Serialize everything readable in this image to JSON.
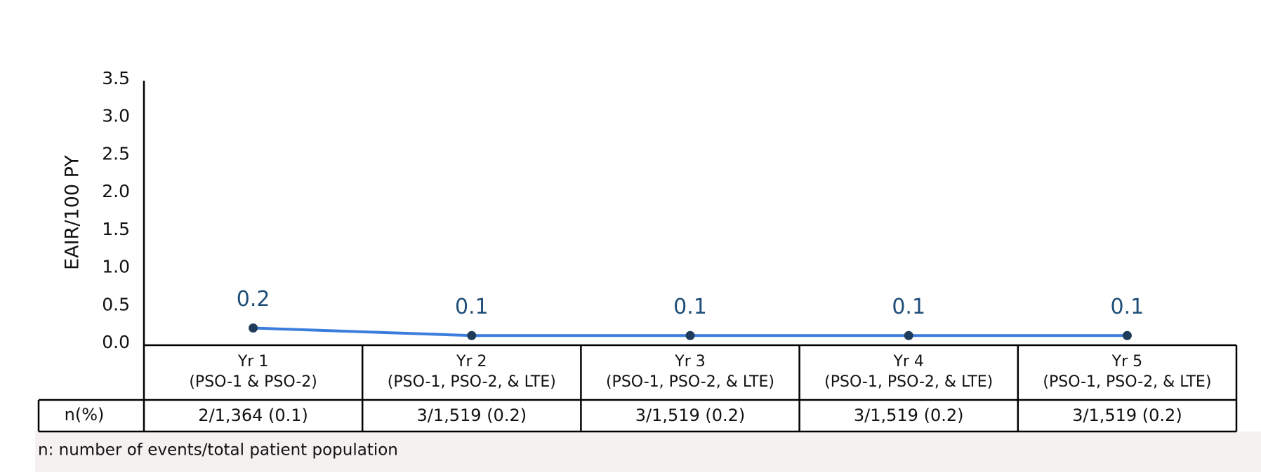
{
  "chart_data": {
    "type": "line",
    "y_label": "EAIR/100 PY",
    "categories": [
      "Yr 1",
      "Yr 2",
      "Yr 3",
      "Yr 4",
      "Yr 5"
    ],
    "category_details": [
      "(PSO-1 & PSO-2)",
      "(PSO-1, PSO-2, & LTE)",
      "(PSO-1, PSO-2, & LTE)",
      "(PSO-1, PSO-2, & LTE)",
      "(PSO-1, PSO-2, & LTE)"
    ],
    "values": [
      0.2,
      0.1,
      0.1,
      0.1,
      0.1
    ],
    "color": "#3b7ddd",
    "marker_color": "#1f3d5a",
    "ylim": [
      0,
      3.5
    ],
    "yticks": [
      {
        "value": 0,
        "label": "0.0"
      },
      0.5,
      {
        "value": 1,
        "label": "1.0"
      },
      1.5,
      {
        "value": 2,
        "label": "2.0"
      },
      2.5,
      {
        "value": 3,
        "label": "3.0"
      },
      3.5
    ],
    "table": {
      "row_label": "n(%)",
      "cells": [
        "2/1,364 (0.1)",
        "3/1,519 (0.2)",
        "3/1,519 (0.2)",
        "3/1,519 (0.2)",
        "3/1,519 (0.2)"
      ]
    },
    "footnote": "n: number of events/total patient population"
  }
}
